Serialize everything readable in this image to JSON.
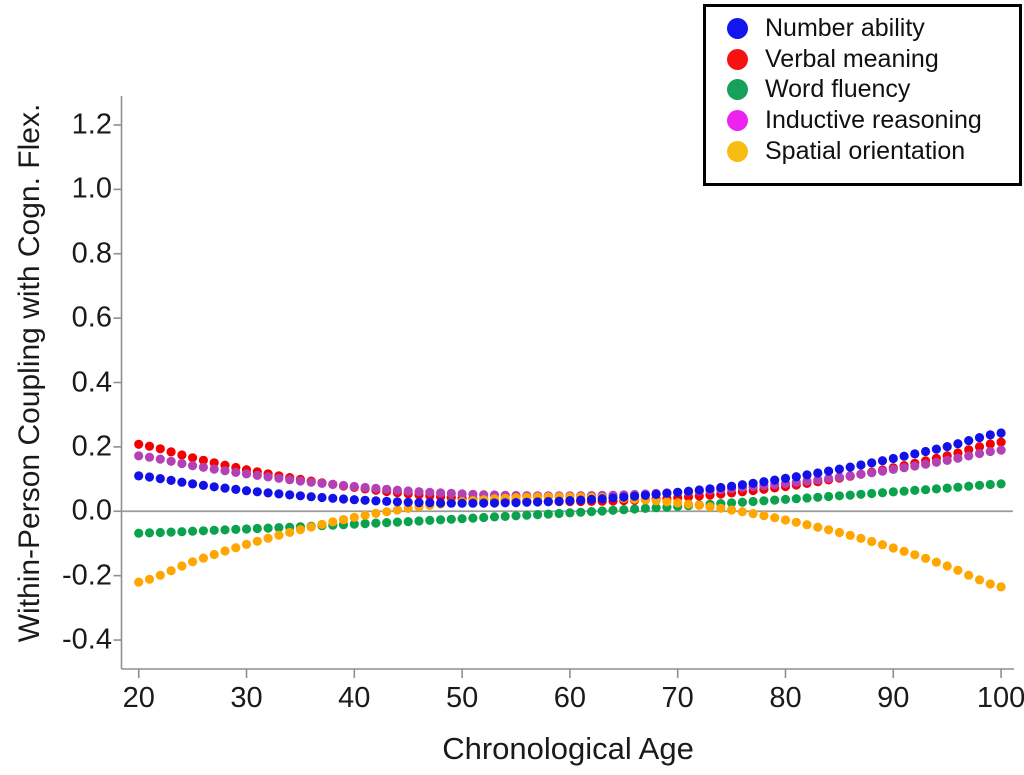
{
  "figure": {
    "background": "#ffffff",
    "text_color": "#1a1a1a",
    "axis_color": "#8f8f8f",
    "zero_line_color": "#9b9b9b",
    "legend_border_color": "#000000"
  },
  "chart_data": {
    "type": "scatter",
    "title": "",
    "xlabel": "Chronological Age",
    "ylabel": "Within-Person Coupling with Cogn. Flex.",
    "x_ticks": [
      "20",
      "30",
      "40",
      "50",
      "60",
      "70",
      "80",
      "90",
      "100"
    ],
    "y_ticks": [
      "1.2",
      "1.0",
      "0.8",
      "0.6",
      "0.4",
      "0.2",
      "0.0",
      "-0.2",
      "-0.4"
    ],
    "xlim": [
      18.4,
      101.2
    ],
    "ylim": [
      -0.49,
      1.29
    ],
    "grid": false,
    "zero_reference_line": 0.0,
    "legend_position": "top-right",
    "point_interval_years": 1,
    "ages": [
      20,
      25,
      30,
      35,
      40,
      45,
      50,
      55,
      60,
      65,
      70,
      75,
      80,
      85,
      90,
      95,
      100
    ],
    "series": [
      {
        "name": "Number ability",
        "color": "#1212e8",
        "legend_color": "#1414ee",
        "values": [
          0.11,
          0.085,
          0.064,
          0.048,
          0.036,
          0.028,
          0.025,
          0.027,
          0.033,
          0.044,
          0.059,
          0.078,
          0.102,
          0.131,
          0.164,
          0.201,
          0.243
        ]
      },
      {
        "name": "Verbal meaning",
        "color": "#f40000",
        "legend_color": "#f81111",
        "values": [
          0.208,
          0.166,
          0.129,
          0.099,
          0.074,
          0.054,
          0.04,
          0.032,
          0.03,
          0.033,
          0.042,
          0.057,
          0.077,
          0.103,
          0.135,
          0.172,
          0.215
        ]
      },
      {
        "name": "Word fluency",
        "color": "#0ba24e",
        "legend_color": "#16a05a",
        "values": [
          -0.068,
          -0.062,
          -0.055,
          -0.048,
          -0.04,
          -0.032,
          -0.023,
          -0.014,
          -0.005,
          0.005,
          0.015,
          0.026,
          0.037,
          0.048,
          0.06,
          0.072,
          0.085
        ]
      },
      {
        "name": "Inductive reasoning",
        "color": "#b441b4",
        "legend_color": "#ee22ee",
        "values": [
          0.172,
          0.142,
          0.116,
          0.094,
          0.077,
          0.063,
          0.054,
          0.049,
          0.048,
          0.051,
          0.059,
          0.07,
          0.086,
          0.106,
          0.13,
          0.158,
          0.19
        ]
      },
      {
        "name": "Spatial orientation",
        "color": "#ffa600",
        "legend_color": "#f8bd13",
        "values": [
          -0.22,
          -0.157,
          -0.103,
          -0.057,
          -0.019,
          0.009,
          0.03,
          0.042,
          0.045,
          0.04,
          0.026,
          0.004,
          -0.027,
          -0.066,
          -0.114,
          -0.17,
          -0.235
        ]
      }
    ],
    "draw_order": [
      2,
      1,
      3,
      4,
      0
    ]
  }
}
